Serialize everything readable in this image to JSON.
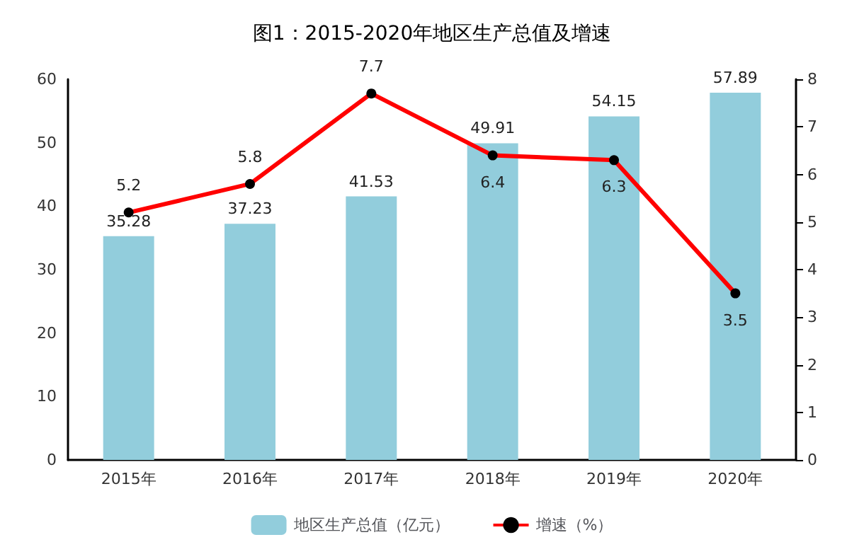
{
  "chart_data": {
    "type": "bar",
    "title": "图1：2015-2020年地区生产总值及增速",
    "categories": [
      "2015年",
      "2016年",
      "2017年",
      "2018年",
      "2019年",
      "2020年"
    ],
    "series": [
      {
        "name": "地区生产总值（亿元）",
        "color": "#92cddc",
        "values": [
          35.28,
          37.23,
          41.53,
          49.91,
          54.15,
          57.89
        ]
      },
      {
        "name": "增速（%）",
        "type": "line",
        "axis": "y2",
        "color": "#ff0000",
        "values": [
          5.2,
          5.8,
          7.7,
          6.4,
          6.3,
          3.5
        ]
      }
    ],
    "ylim": [
      0,
      60
    ],
    "yticks": [
      0,
      10,
      20,
      30,
      40,
      50,
      60
    ],
    "y2lim": [
      0,
      8
    ],
    "y2ticks": [
      0,
      1,
      2,
      3,
      4,
      5,
      6,
      7,
      8
    ],
    "data_labels": true,
    "grid": false,
    "legend": "bottom",
    "marker": "circle",
    "line_style": "solid"
  }
}
